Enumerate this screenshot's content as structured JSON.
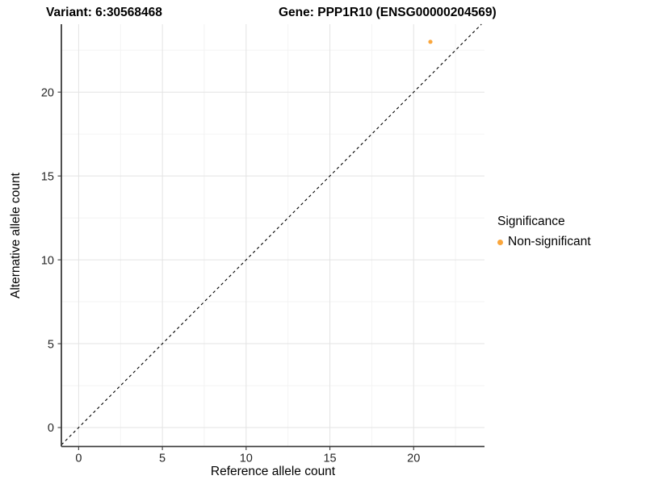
{
  "titles": {
    "variant": "Variant: 6:30568468",
    "gene": "Gene: PPP1R10 (ENSG00000204569)"
  },
  "chart_data": {
    "type": "scatter",
    "xlabel": "Reference allele count",
    "ylabel": "Alternative allele count",
    "xlim": [
      -1.03,
      24.23
    ],
    "ylim": [
      -1.13,
      24.05
    ],
    "x_ticks": [
      0,
      5,
      10,
      15,
      20
    ],
    "y_ticks": [
      0,
      5,
      10,
      15,
      20
    ],
    "x_minor_ticks": [
      2.5,
      7.5,
      12.5,
      17.5,
      22.5
    ],
    "y_minor_ticks": [
      2.5,
      7.5,
      12.5,
      17.5,
      22.5
    ],
    "grid": true,
    "identity_line": {
      "type": "dashed",
      "slope": 1,
      "intercept": 0,
      "color": "#000000"
    },
    "series": [
      {
        "name": "Non-significant",
        "color": "#FAA63C",
        "points": [
          {
            "x": 21,
            "y": 23
          }
        ]
      }
    ],
    "legend": {
      "title": "Significance",
      "position": "right",
      "items": [
        {
          "label": "Non-significant",
          "color": "#FAA63C"
        }
      ]
    },
    "colors": {
      "major_grid": "#e3e3e3",
      "minor_grid": "#f2f2f2",
      "axis_line": "#3c3c3c",
      "tick_label": "#262626"
    }
  }
}
